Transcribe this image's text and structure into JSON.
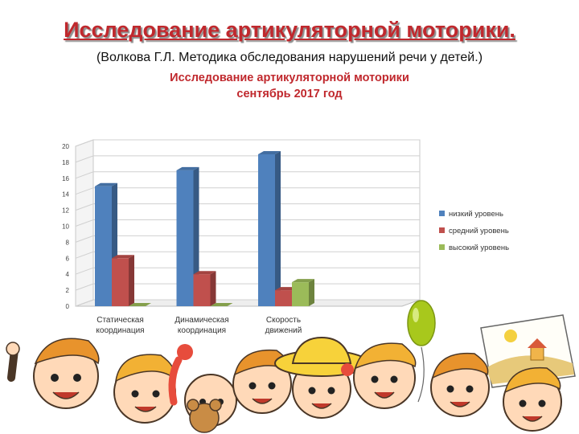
{
  "slide": {
    "title": "Исследование артикуляторной моторики.",
    "subtitle": "(Волкова Г.Л. Методика обследования нарушений речи у детей.)"
  },
  "chart_data": {
    "type": "bar",
    "title_line1": "Исследование артикуляторной моторики",
    "title_line2": "сентябрь 2017 год",
    "categories": [
      [
        "Статическая",
        "координация"
      ],
      [
        "Динамическая",
        "координация"
      ],
      [
        "Скорость",
        "движений"
      ],
      [
        "",
        ""
      ]
    ],
    "series": [
      {
        "name": "низкий уровень",
        "color": "#4f81bd",
        "values": [
          15,
          17,
          19,
          null
        ]
      },
      {
        "name": "средний уровень",
        "color": "#c0504d",
        "values": [
          6,
          4,
          2,
          null
        ]
      },
      {
        "name": "высокий уровень",
        "color": "#9bbb59",
        "values": [
          0,
          0,
          3,
          null
        ]
      }
    ],
    "yticks": [
      0,
      2,
      4,
      6,
      8,
      10,
      12,
      14,
      16,
      18,
      20
    ],
    "ylim": [
      0,
      20
    ],
    "grid": true,
    "legend": "right",
    "style": "3d-clustered-bar"
  },
  "decor": {
    "kind": "cartoon-children-illustration",
    "balloon_color": "#a8c81c"
  }
}
